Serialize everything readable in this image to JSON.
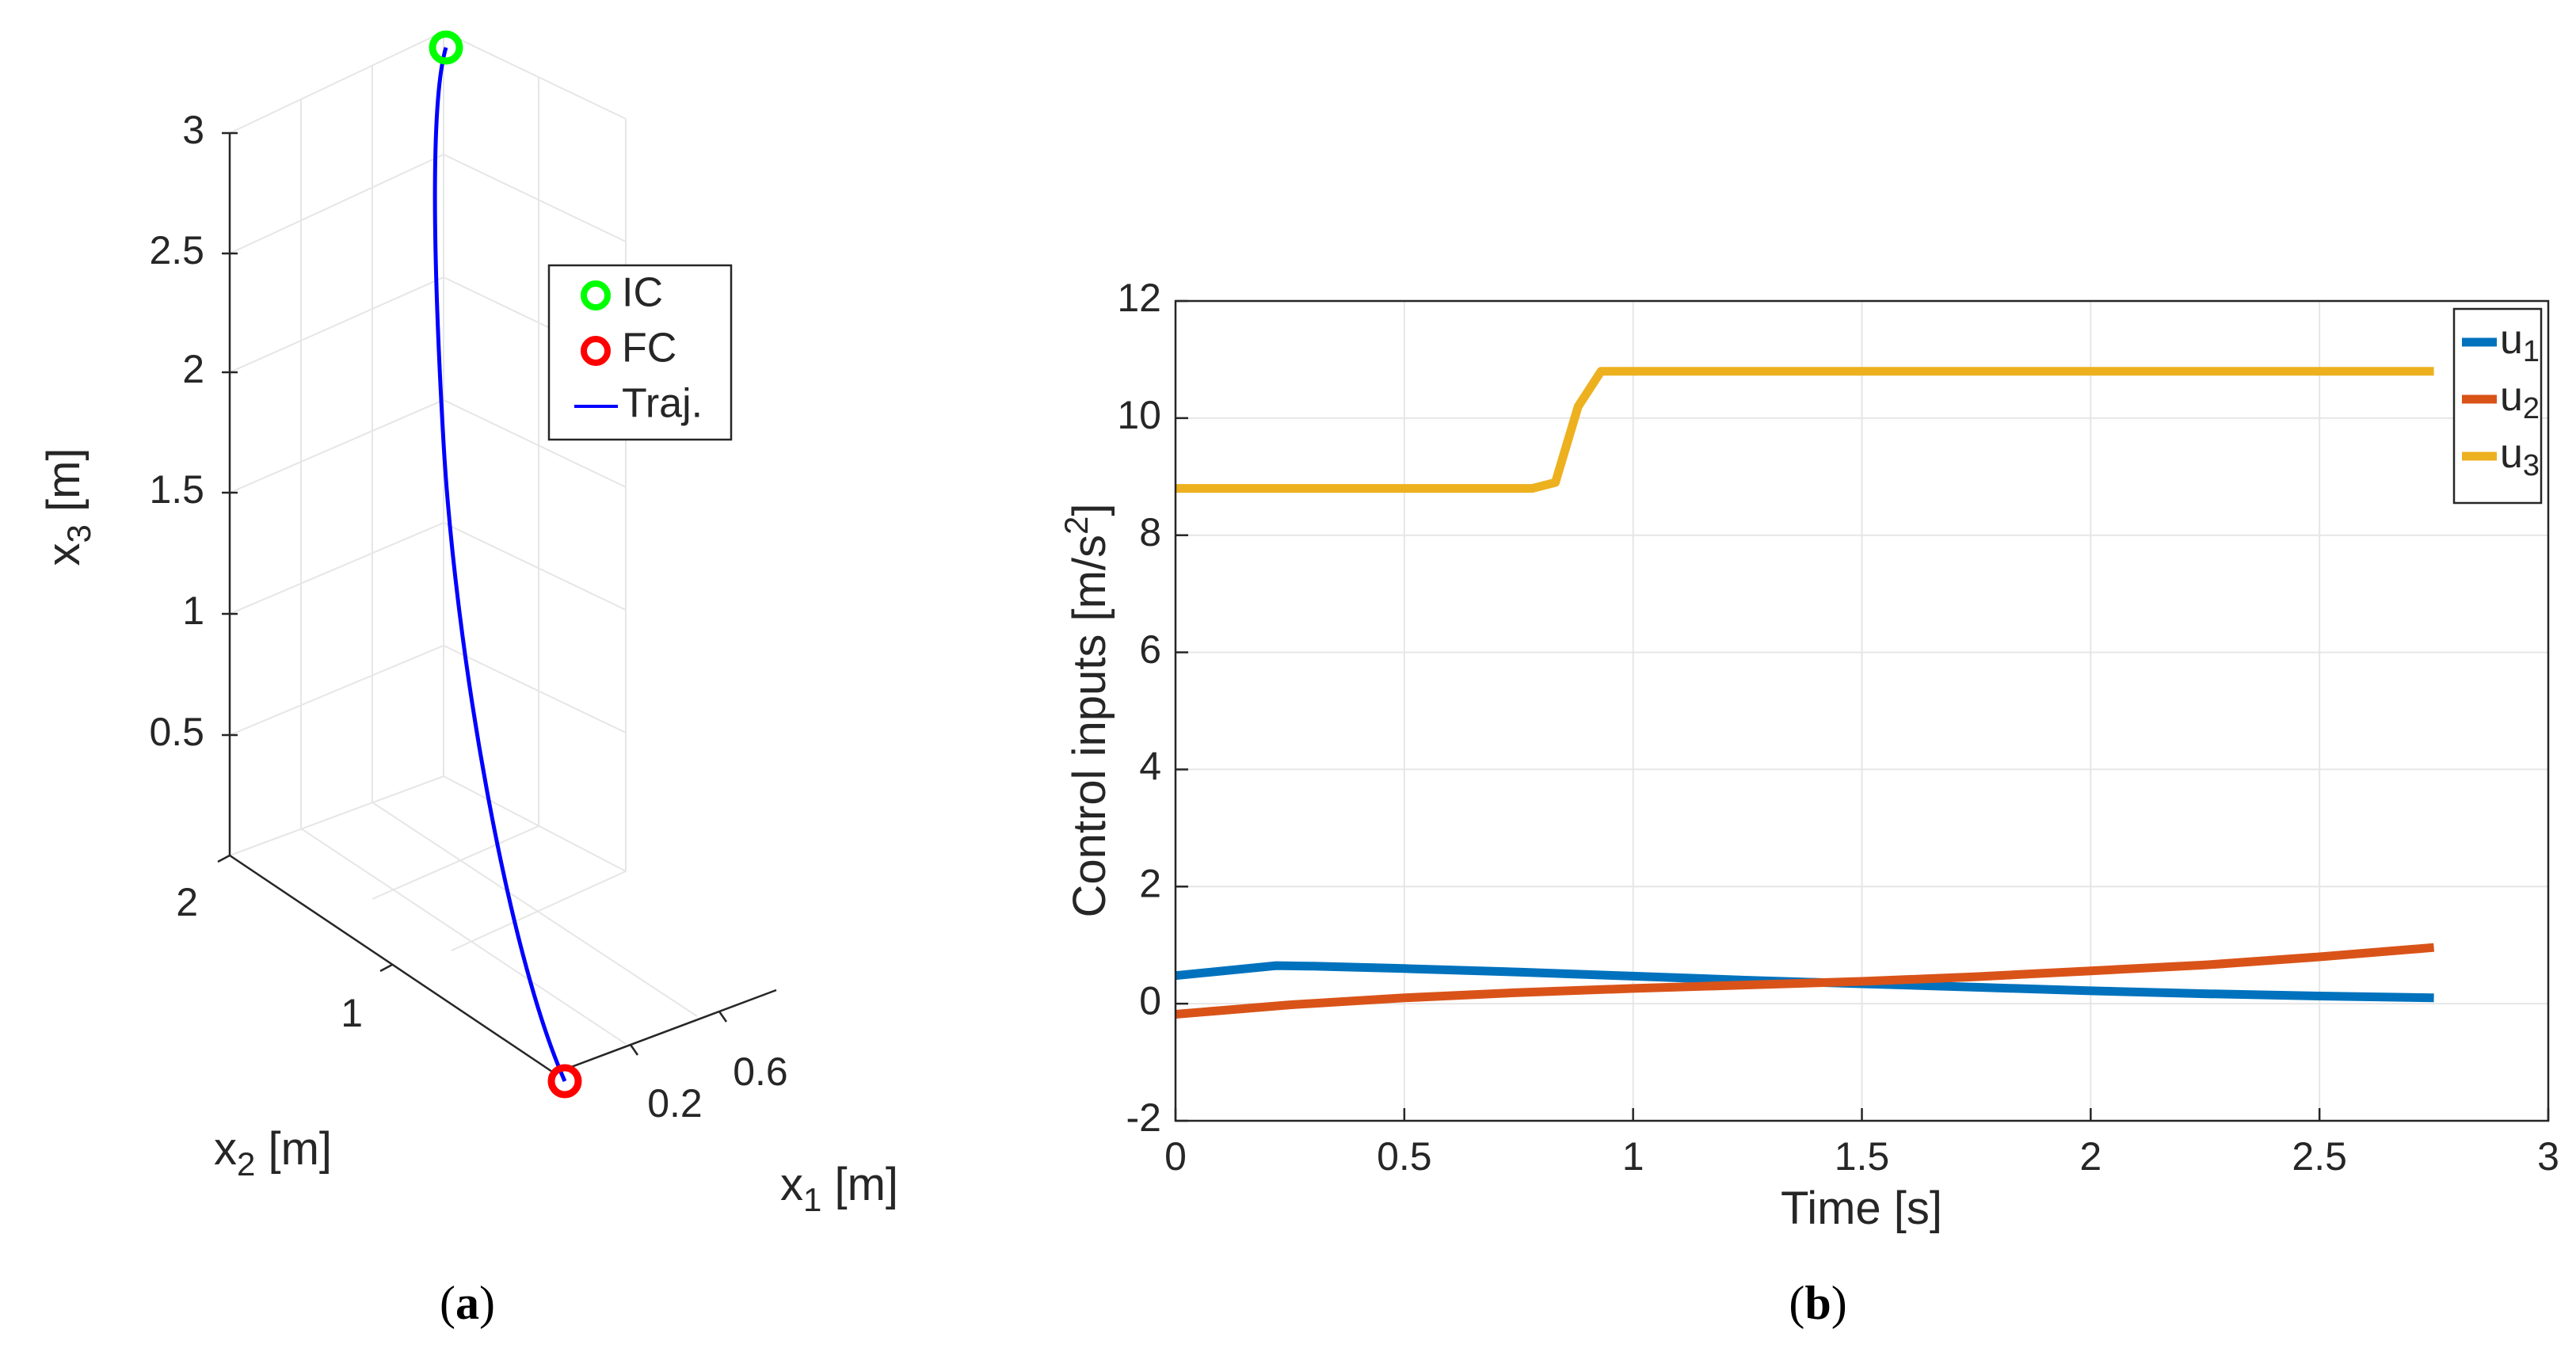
{
  "chart_data": [
    {
      "panel": "a",
      "type": "line3d",
      "caption": "(a)",
      "xlabel": "x1 [m]",
      "ylabel": "x2 [m]",
      "zlabel": "x3 [m]",
      "label_parts": {
        "x": [
          "x",
          "1",
          " [m]"
        ],
        "y": [
          "x",
          "2",
          " [m]"
        ],
        "z": [
          "x",
          "3",
          " [m]"
        ]
      },
      "x_ticks": [
        "0.2",
        "0.6"
      ],
      "y_ticks": [
        "1",
        "2"
      ],
      "z_ticks": [
        "0.5",
        "1",
        "1.5",
        "2",
        "2.5",
        "3"
      ],
      "legend": [
        "IC",
        "FC",
        "Traj."
      ],
      "legend_position": "upper-right inside",
      "series": [
        {
          "name": "IC",
          "marker": "circle",
          "color": "#00ff00"
        },
        {
          "name": "FC",
          "marker": "circle",
          "color": "#ff0000"
        },
        {
          "name": "Traj.",
          "line": "solid",
          "color": "#0000ff"
        }
      ]
    },
    {
      "panel": "b",
      "type": "line",
      "caption": "(b)",
      "xlabel": "Time [s]",
      "ylabel_parts": [
        "Control inputs [m/s",
        "2",
        "]"
      ],
      "xlim": [
        0,
        3
      ],
      "ylim": [
        -2,
        12
      ],
      "x_ticks": [
        0,
        0.5,
        1,
        1.5,
        2,
        2.5,
        3
      ],
      "y_ticks": [
        -2,
        0,
        2,
        4,
        6,
        8,
        10,
        12
      ],
      "x_tick_labels": [
        "0",
        "0.5",
        "1",
        "1.5",
        "2",
        "2.5",
        "3"
      ],
      "y_tick_labels": [
        "-2",
        "0",
        "2",
        "4",
        "6",
        "8",
        "10",
        "12"
      ],
      "grid": true,
      "legend_position": "top-right",
      "series": [
        {
          "name": "u1",
          "label_parts": [
            "u",
            "1"
          ],
          "color": "#0072bd",
          "x": [
            0,
            0.22,
            0.3,
            0.5,
            0.75,
            1.0,
            1.25,
            1.5,
            1.75,
            2.0,
            2.25,
            2.5,
            2.75
          ],
          "y": [
            0.48,
            0.65,
            0.64,
            0.6,
            0.54,
            0.47,
            0.4,
            0.34,
            0.28,
            0.22,
            0.17,
            0.13,
            0.1
          ]
        },
        {
          "name": "u2",
          "label_parts": [
            "u",
            "2"
          ],
          "color": "#d95319",
          "x": [
            0,
            0.25,
            0.5,
            0.75,
            1.0,
            1.25,
            1.5,
            1.75,
            2.0,
            2.25,
            2.5,
            2.75
          ],
          "y": [
            -0.18,
            -0.02,
            0.1,
            0.19,
            0.26,
            0.32,
            0.38,
            0.46,
            0.56,
            0.66,
            0.8,
            0.96
          ]
        },
        {
          "name": "u3",
          "label_parts": [
            "u",
            "3"
          ],
          "color": "#edb120",
          "x": [
            0,
            0.78,
            0.83,
            0.88,
            0.93,
            1.0,
            1.5,
            2.0,
            2.5,
            2.75
          ],
          "y": [
            8.8,
            8.8,
            8.9,
            10.2,
            10.8,
            10.8,
            10.8,
            10.8,
            10.8,
            10.8
          ]
        }
      ]
    }
  ]
}
